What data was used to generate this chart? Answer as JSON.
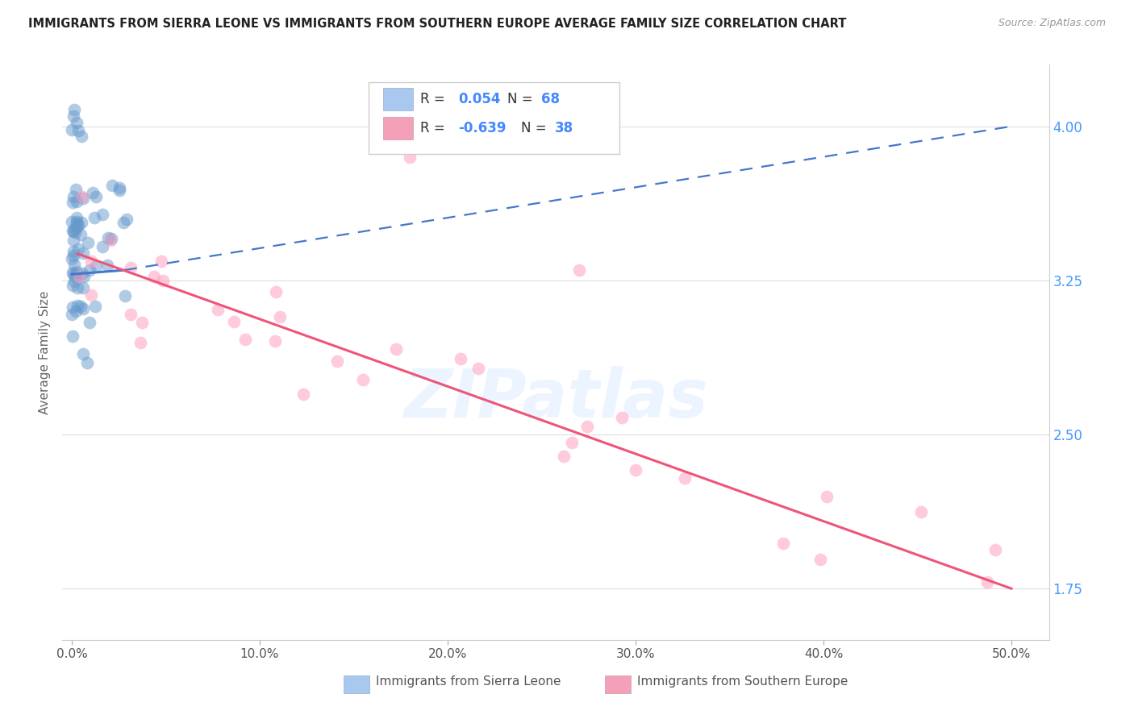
{
  "title": "IMMIGRANTS FROM SIERRA LEONE VS IMMIGRANTS FROM SOUTHERN EUROPE AVERAGE FAMILY SIZE CORRELATION CHART",
  "source": "Source: ZipAtlas.com",
  "xlabel_ticks": [
    "0.0%",
    "10.0%",
    "20.0%",
    "30.0%",
    "40.0%",
    "50.0%"
  ],
  "xlabel_values": [
    0,
    10,
    20,
    30,
    40,
    50
  ],
  "ylabel": "Average Family Size",
  "ylim": [
    1.5,
    4.3
  ],
  "xlim": [
    -0.5,
    52
  ],
  "yticks": [
    1.75,
    2.5,
    3.25,
    4.0
  ],
  "ytick_labels": [
    "1.75",
    "2.50",
    "3.25",
    "4.00"
  ],
  "legend_labels": [
    "Immigrants from Sierra Leone",
    "Immigrants from Southern Europe"
  ],
  "sierra_leone_color": "#6699cc",
  "southern_europe_color": "#ff99bb",
  "sierra_leone_alpha": 0.5,
  "southern_europe_alpha": 0.5,
  "watermark": "ZIPatlas",
  "background_color": "#ffffff",
  "grid_color": "#dddddd",
  "title_fontsize": 10.5,
  "trendline_blue_color": "#4477cc",
  "trendline_pink_color": "#ee5577",
  "tick_color_right": "#4499ff",
  "legend_box_color": "#a8c8f0",
  "legend_box_color2": "#f4a0b8",
  "R1": "0.054",
  "N1": "68",
  "R2": "-0.639",
  "N2": "38",
  "sl_trendline_x0": 0.0,
  "sl_trendline_y0": 3.28,
  "sl_trendline_x1": 2.8,
  "sl_trendline_y1": 3.3,
  "sl_dash_x0": 2.8,
  "sl_dash_y0": 3.3,
  "sl_dash_x1": 50,
  "sl_dash_y1": 4.0,
  "se_trendline_x0": 0.3,
  "se_trendline_y0": 3.38,
  "se_trendline_x1": 50,
  "se_trendline_y1": 1.75
}
